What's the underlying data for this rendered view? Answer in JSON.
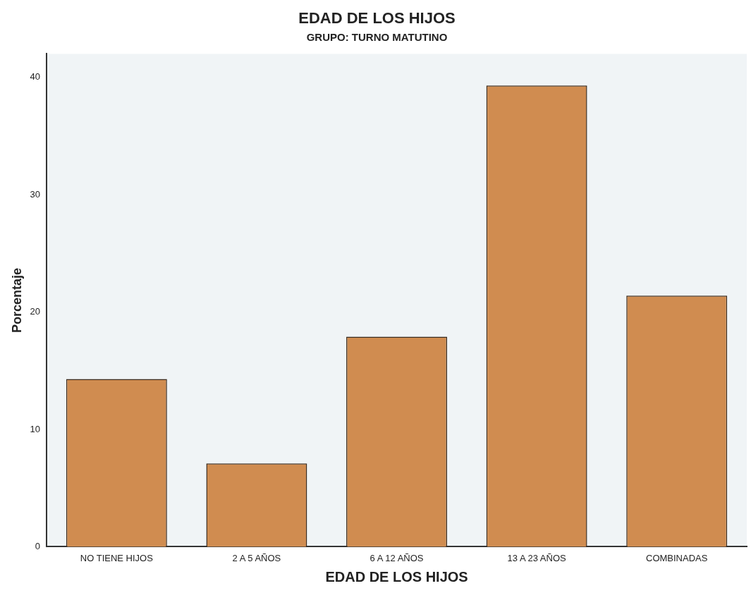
{
  "chart_data": {
    "type": "bar",
    "title": "EDAD DE LOS HIJOS",
    "subtitle": "GRUPO: TURNO MATUTINO",
    "xlabel": "EDAD DE LOS HIJOS",
    "ylabel": "Porcentaje",
    "categories": [
      "NO TIENE HIJOS",
      "2 A 5 AÑOS",
      "6 A 12 AÑOS",
      "13 A 23 AÑOS",
      "COMBINADAS"
    ],
    "values": [
      14.3,
      7.1,
      17.9,
      39.3,
      21.4
    ],
    "color": "#d08c50",
    "ylim": [
      0,
      42
    ],
    "yticks": [
      0,
      10,
      20,
      30,
      40
    ],
    "grid": false,
    "legend": false
  }
}
